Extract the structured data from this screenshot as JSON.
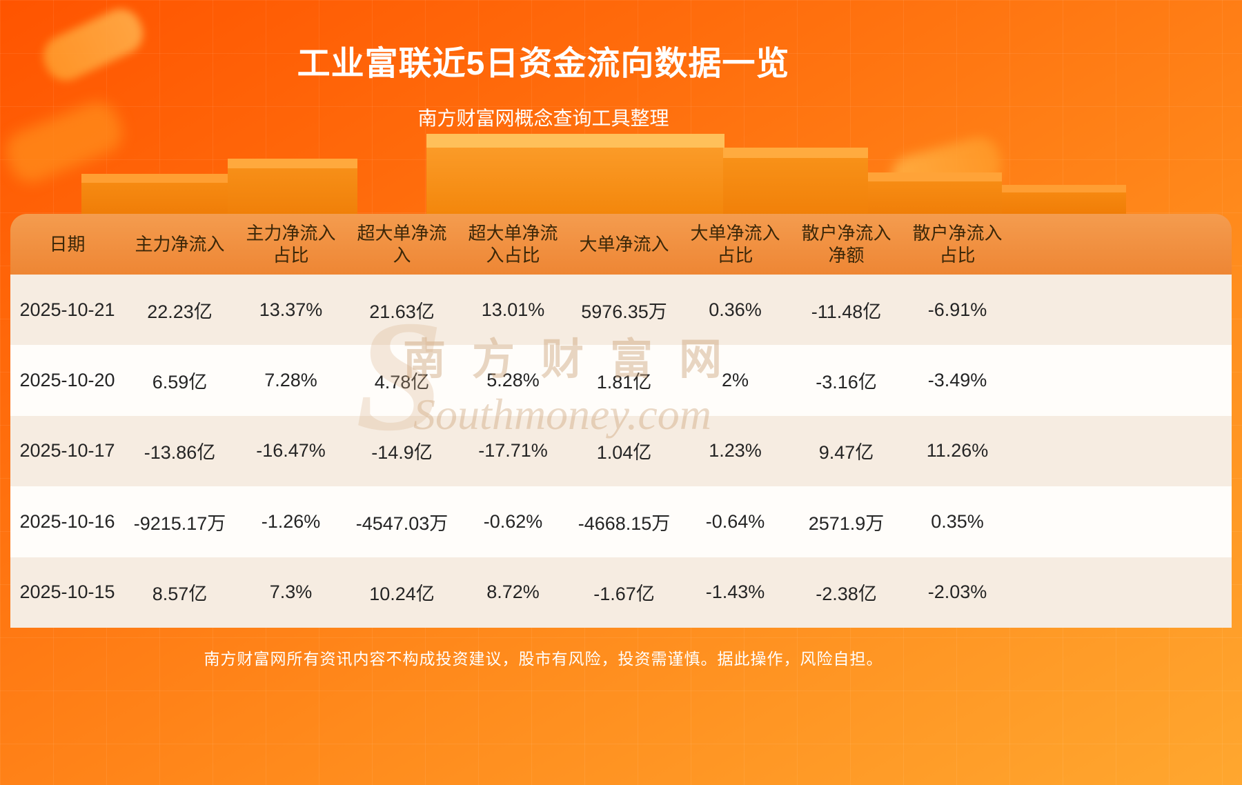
{
  "page": {
    "title": "工业富联近5日资金流向数据一览",
    "subtitle": "南方财富网概念查询工具整理",
    "footer": "南方财富网所有资讯内容不构成投资建议，股市有风险，投资需谨慎。据此操作，风险自担。",
    "watermark": {
      "glyph": "S",
      "cn": "南方财富网",
      "en": "Southmoney.com"
    }
  },
  "colors": {
    "bg_top": "#ff5400",
    "bg_bottom": "#ffa72f",
    "header_bg_top": "#f49c4f",
    "header_bg_bottom": "#ee8634",
    "header_text": "#3b2708",
    "row_odd": "#f6ece1",
    "row_even": "#fffdfa",
    "text_dark": "#242424",
    "title_color": "#ffffff"
  },
  "table": {
    "header_lines": [
      [
        "日期"
      ],
      [
        "主力净流入"
      ],
      [
        "主力净流入",
        "占比"
      ],
      [
        "超大单净流",
        "入"
      ],
      [
        "超大单净流",
        "入占比"
      ],
      [
        "大单净流入"
      ],
      [
        "大单净流入",
        "占比"
      ],
      [
        "散户净流入",
        "净额"
      ],
      [
        "散户净流入",
        "占比"
      ]
    ]
  },
  "chart_data": {
    "type": "table",
    "title": "工业富联近5日资金流向数据一览",
    "columns": [
      "日期",
      "主力净流入",
      "主力净流入占比",
      "超大单净流入",
      "超大单净流入占比",
      "大单净流入",
      "大单净流入占比",
      "散户净流入净额",
      "散户净流入占比"
    ],
    "rows": [
      [
        "2025-10-21",
        "22.23亿",
        "13.37%",
        "21.63亿",
        "13.01%",
        "5976.35万",
        "0.36%",
        "-11.48亿",
        "-6.91%"
      ],
      [
        "2025-10-20",
        "6.59亿",
        "7.28%",
        "4.78亿",
        "5.28%",
        "1.81亿",
        "2%",
        "-3.16亿",
        "-3.49%"
      ],
      [
        "2025-10-17",
        "-13.86亿",
        "-16.47%",
        "-14.9亿",
        "-17.71%",
        "1.04亿",
        "1.23%",
        "9.47亿",
        "11.26%"
      ],
      [
        "2025-10-16",
        "-9215.17万",
        "-1.26%",
        "-4547.03万",
        "-0.62%",
        "-4668.15万",
        "-0.64%",
        "2571.9万",
        "0.35%"
      ],
      [
        "2025-10-15",
        "8.57亿",
        "7.3%",
        "10.24亿",
        "8.72%",
        "-1.67亿",
        "-1.43%",
        "-2.38亿",
        "-2.03%"
      ]
    ]
  }
}
